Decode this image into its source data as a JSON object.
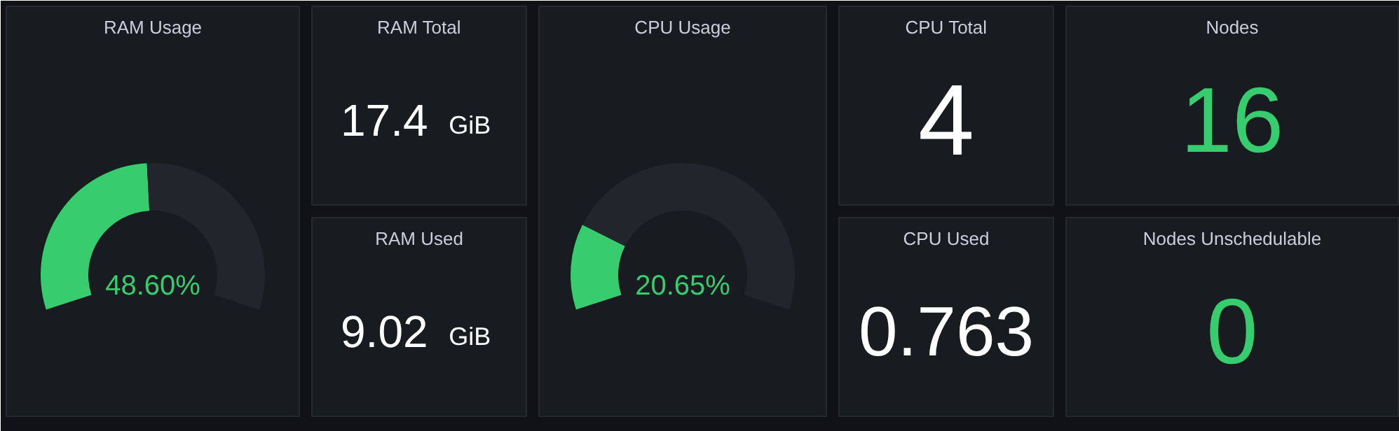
{
  "chart_data": [
    {
      "type": "donut",
      "title": "RAM Usage",
      "categories": [
        null,
        null
      ],
      "values": [
        48.6,
        51.4
      ],
      "colors": [
        "#37cc6d",
        "#22252b"
      ],
      "annotations": [
        "48.60%"
      ]
    },
    {
      "type": "other",
      "title": "RAM Total",
      "annotations": [
        "17.4 GiB"
      ],
      "color": "#ffffff"
    },
    {
      "type": "other",
      "title": "RAM Used",
      "annotations": [
        "9.02 GiB"
      ],
      "color": "#ffffff"
    },
    {
      "type": "donut",
      "title": "CPU Usage",
      "categories": [
        null,
        null
      ],
      "values": [
        20.65,
        79.35
      ],
      "colors": [
        "#37cc6d",
        "#22252b"
      ],
      "annotations": [
        "20.65%"
      ]
    },
    {
      "type": "other",
      "title": "CPU Total",
      "annotations": [
        "4"
      ],
      "color": "#ffffff"
    },
    {
      "type": "other",
      "title": "CPU Used",
      "annotations": [
        "0.763"
      ],
      "color": "#ffffff"
    },
    {
      "type": "other",
      "title": "Nodes",
      "annotations": [
        "16"
      ],
      "color": "#37cc6d"
    },
    {
      "type": "other",
      "title": "Nodes Unschedulable",
      "annotations": [
        "0"
      ],
      "color": "#37cc6d"
    }
  ]
}
